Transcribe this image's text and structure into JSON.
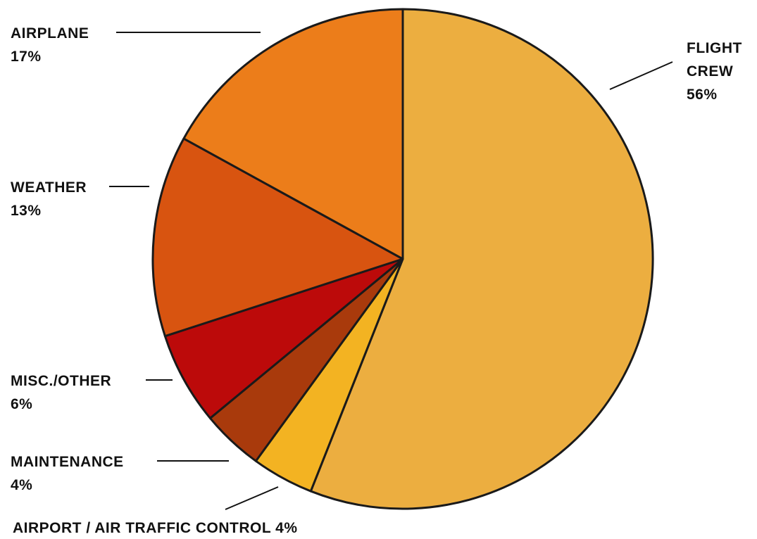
{
  "chart_data": {
    "type": "pie",
    "title": "",
    "slices": [
      {
        "label": "FLIGHT CREW",
        "value": 56,
        "percent_label": "56%",
        "color": "#ECAE40"
      },
      {
        "label": "AIRPORT / AIR TRAFFIC CONTROL",
        "value": 4,
        "percent_label": "4%",
        "color": "#F3B322"
      },
      {
        "label": "MAINTENANCE",
        "value": 4,
        "percent_label": "4%",
        "color": "#A93A0C"
      },
      {
        "label": "MISC./OTHER",
        "value": 6,
        "percent_label": "6%",
        "color": "#BC0A0A"
      },
      {
        "label": "WEATHER",
        "value": 13,
        "percent_label": "13%",
        "color": "#D85410"
      },
      {
        "label": "AIRPLANE",
        "value": 17,
        "percent_label": "17%",
        "color": "#EC7D1A"
      }
    ],
    "start_angle": "12 o'clock",
    "direction": "clockwise",
    "labels": {
      "flight_crew_line1": "FLIGHT",
      "flight_crew_line2": "CREW",
      "flight_crew_pct": "56%",
      "airplane": "AIRPLANE",
      "airplane_pct": "17%",
      "weather": "WEATHER",
      "weather_pct": "13%",
      "misc": "MISC./OTHER",
      "misc_pct": "6%",
      "maintenance": "MAINTENANCE",
      "maintenance_pct": "4%",
      "airport_atc": "AIRPORT / AIR TRAFFIC CONTROL 4%"
    }
  }
}
